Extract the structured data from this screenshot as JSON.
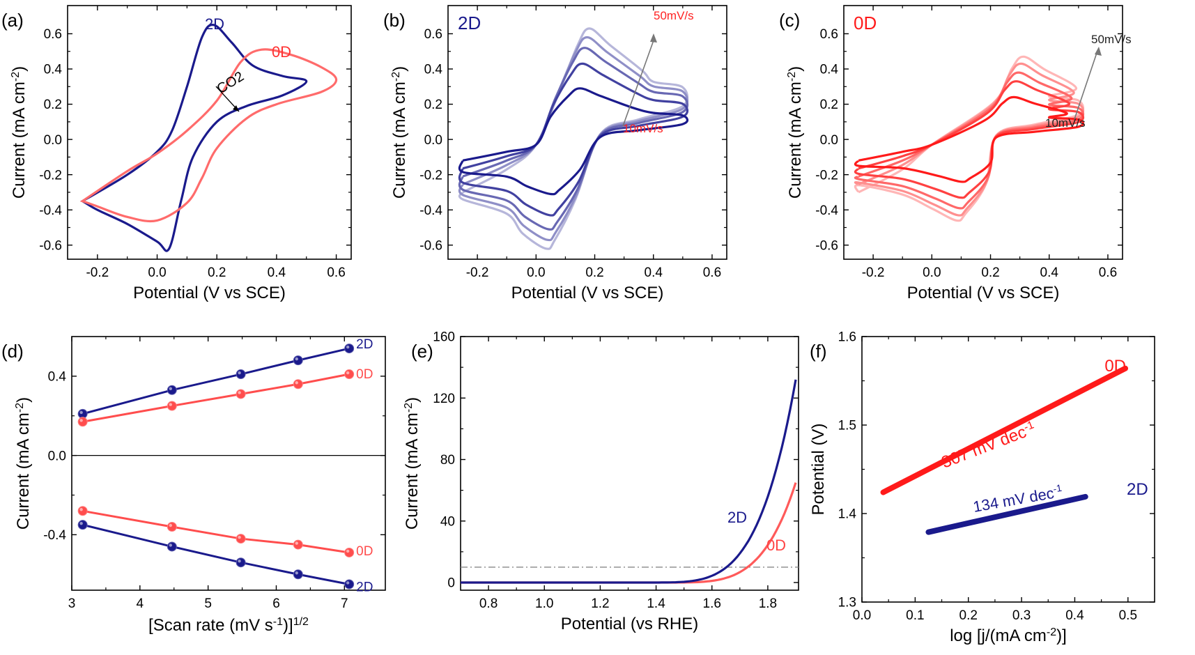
{
  "colors": {
    "blue": "#1a1a8c",
    "red": "#ff3333",
    "pink": "#ff6b6b",
    "gray": "#888888",
    "axis": "#000000"
  },
  "chart_data": [
    {
      "panel": "(a)",
      "type": "line",
      "xlabel": "Potential (V vs SCE)",
      "ylabel": "Current (mA cm^-2)",
      "xlim": [
        -0.3,
        0.65
      ],
      "ylim": [
        -0.68,
        0.76
      ],
      "xticks": [
        -0.2,
        0.0,
        0.2,
        0.4,
        0.6
      ],
      "yticks": [
        -0.6,
        -0.4,
        -0.2,
        0.0,
        0.2,
        0.4,
        0.6
      ],
      "xticklabels": [
        "-0.2",
        "0.0",
        "0.2",
        "0.4",
        "0.6"
      ],
      "yticklabels": [
        "-0.6",
        "-0.4",
        "-0.2",
        "0.0",
        "0.2",
        "0.4",
        "0.6"
      ],
      "series": [
        {
          "name": "2D",
          "color": "#1a1a8c",
          "x": [
            -0.25,
            -0.1,
            0.0,
            0.05,
            0.1,
            0.15,
            0.19,
            0.25,
            0.32,
            0.42,
            0.5,
            0.42,
            0.3,
            0.2,
            0.12,
            0.08,
            0.04,
            0.0,
            -0.1,
            -0.2,
            -0.25
          ],
          "y": [
            -0.35,
            -0.2,
            -0.07,
            0.05,
            0.3,
            0.58,
            0.65,
            0.55,
            0.42,
            0.36,
            0.33,
            0.25,
            0.19,
            0.1,
            -0.1,
            -0.35,
            -0.62,
            -0.58,
            -0.48,
            -0.4,
            -0.35
          ]
        },
        {
          "name": "0D",
          "color": "#ff6b6b",
          "x": [
            -0.25,
            -0.1,
            0.0,
            0.1,
            0.2,
            0.28,
            0.35,
            0.45,
            0.55,
            0.6,
            0.55,
            0.4,
            0.3,
            0.2,
            0.15,
            0.1,
            0.0,
            -0.1,
            -0.2,
            -0.25
          ],
          "y": [
            -0.35,
            -0.18,
            -0.08,
            0.05,
            0.22,
            0.44,
            0.51,
            0.48,
            0.41,
            0.34,
            0.27,
            0.2,
            0.12,
            -0.05,
            -0.22,
            -0.36,
            -0.46,
            -0.44,
            -0.38,
            -0.35
          ]
        }
      ],
      "annotations": [
        {
          "text": "2D"
        },
        {
          "text": "0D"
        },
        {
          "text": "CO2"
        }
      ]
    },
    {
      "panel": "(b)",
      "type": "line",
      "xlabel": "Potential (V vs SCE)",
      "ylabel": "Current (mA cm^-2)",
      "xlim": [
        -0.3,
        0.65
      ],
      "ylim": [
        -0.68,
        0.76
      ],
      "xticks": [
        -0.2,
        0.0,
        0.2,
        0.4,
        0.6
      ],
      "yticks": [
        -0.6,
        -0.4,
        -0.2,
        0.0,
        0.2,
        0.4,
        0.6
      ],
      "xticklabels": [
        "-0.2",
        "0.0",
        "0.2",
        "0.4",
        "0.6"
      ],
      "yticklabels": [
        "-0.6",
        "-0.4",
        "-0.2",
        "0.0",
        "0.2",
        "0.4",
        "0.6"
      ],
      "label": "2D",
      "base_color": "#1a1a8c",
      "scan_rates": [
        "10",
        "20",
        "30",
        "40",
        "50"
      ],
      "peak_anodic": [
        0.29,
        0.43,
        0.52,
        0.58,
        0.63
      ],
      "peak_cathodic": [
        -0.31,
        -0.43,
        -0.51,
        -0.57,
        -0.62
      ],
      "x_anodic": 0.15,
      "x_cathodic": 0.05,
      "annotations": [
        {
          "text": "50mV/s"
        },
        {
          "text": "10mV/s"
        }
      ]
    },
    {
      "panel": "(c)",
      "type": "line",
      "xlabel": "Potential (V vs SCE)",
      "ylabel": "Current (mA cm^-2)",
      "xlim": [
        -0.3,
        0.65
      ],
      "ylim": [
        -0.68,
        0.76
      ],
      "xticks": [
        -0.2,
        0.0,
        0.2,
        0.4,
        0.6
      ],
      "yticks": [
        -0.6,
        -0.4,
        -0.2,
        0.0,
        0.2,
        0.4,
        0.6
      ],
      "xticklabels": [
        "-0.2",
        "0.0",
        "0.2",
        "0.4",
        "0.6"
      ],
      "yticklabels": [
        "-0.6",
        "-0.4",
        "-0.2",
        "0.0",
        "0.2",
        "0.4",
        "0.6"
      ],
      "label": "0D",
      "base_color": "#ff1a1a",
      "scan_rates": [
        "10",
        "20",
        "30",
        "40",
        "50"
      ],
      "peak_anodic": [
        0.24,
        0.33,
        0.38,
        0.43,
        0.47
      ],
      "peak_cathodic": [
        -0.24,
        -0.33,
        -0.39,
        -0.43,
        -0.46
      ],
      "x_anodic": 0.28,
      "x_cathodic": 0.1,
      "annotations": [
        {
          "text": "50mV/s"
        },
        {
          "text": "10mV/s"
        }
      ]
    },
    {
      "panel": "(d)",
      "type": "scatter",
      "xlabel": "[Scan rate (mV s^-1)]^1/2",
      "ylabel": "Current (mA cm^-2)",
      "xlim": [
        3.0,
        7.6
      ],
      "ylim": [
        -0.68,
        0.6
      ],
      "xticks": [
        3,
        4,
        5,
        6,
        7
      ],
      "yticks": [
        -0.4,
        0.0,
        0.4
      ],
      "xticklabels": [
        "3",
        "4",
        "5",
        "6",
        "7"
      ],
      "yticklabels": [
        "-0.4",
        "0.0",
        "0.4"
      ],
      "x": [
        3.16,
        4.47,
        5.48,
        6.32,
        7.07
      ],
      "series": [
        {
          "name": "2D",
          "color": "#1a1a8c",
          "values": [
            0.21,
            0.33,
            0.41,
            0.48,
            0.54
          ]
        },
        {
          "name": "0D",
          "color": "#ff4d4d",
          "values": [
            0.17,
            0.25,
            0.31,
            0.36,
            0.41
          ]
        },
        {
          "name": "0D",
          "color": "#ff4d4d",
          "values": [
            -0.28,
            -0.36,
            -0.42,
            -0.45,
            -0.49
          ]
        },
        {
          "name": "2D",
          "color": "#1a1a8c",
          "values": [
            -0.35,
            -0.46,
            -0.54,
            -0.6,
            -0.65
          ]
        }
      ]
    },
    {
      "panel": "(e)",
      "type": "line",
      "xlabel": "Potential (vs RHE)",
      "ylabel": "Current (mA cm^-2)",
      "xlim": [
        0.7,
        1.91
      ],
      "ylim": [
        -5,
        160
      ],
      "xticks": [
        0.8,
        1.0,
        1.2,
        1.4,
        1.6,
        1.8
      ],
      "yticks": [
        0,
        40,
        80,
        120,
        160
      ],
      "xticklabels": [
        "0.8",
        "1.0",
        "1.2",
        "1.4",
        "1.6",
        "1.8"
      ],
      "yticklabels": [
        "0",
        "40",
        "80",
        "120",
        "160"
      ],
      "reference_line_y": 10,
      "series": [
        {
          "name": "2D",
          "color": "#1a1a8c",
          "onset": 1.36,
          "end_value": 132
        },
        {
          "name": "0D",
          "color": "#ff5a5a",
          "onset": 1.42,
          "end_value": 65
        }
      ]
    },
    {
      "panel": "(f)",
      "type": "line",
      "xlabel": "log [j/(mA cm^-2)]",
      "ylabel": "Potential (V)",
      "xlim": [
        0.0,
        0.55
      ],
      "ylim": [
        1.3,
        1.6
      ],
      "xticks": [
        0.0,
        0.1,
        0.2,
        0.3,
        0.4,
        0.5
      ],
      "yticks": [
        1.3,
        1.4,
        1.5,
        1.6
      ],
      "xticklabels": [
        "0.0",
        "0.1",
        "0.2",
        "0.3",
        "0.4",
        "0.5"
      ],
      "yticklabels": [
        "1.3",
        "1.4",
        "1.5",
        "1.6"
      ],
      "series": [
        {
          "name": "0D",
          "color": "#ff1a1a",
          "x": [
            0.04,
            0.495
          ],
          "y": [
            1.424,
            1.564
          ]
        },
        {
          "name": "2D",
          "color": "#1a1a8c",
          "x": [
            0.125,
            0.42
          ],
          "y": [
            1.379,
            1.419
          ]
        }
      ],
      "annotations": [
        {
          "text": "307 mV dec-1"
        },
        {
          "text": "134 mV dec-1"
        }
      ]
    }
  ]
}
